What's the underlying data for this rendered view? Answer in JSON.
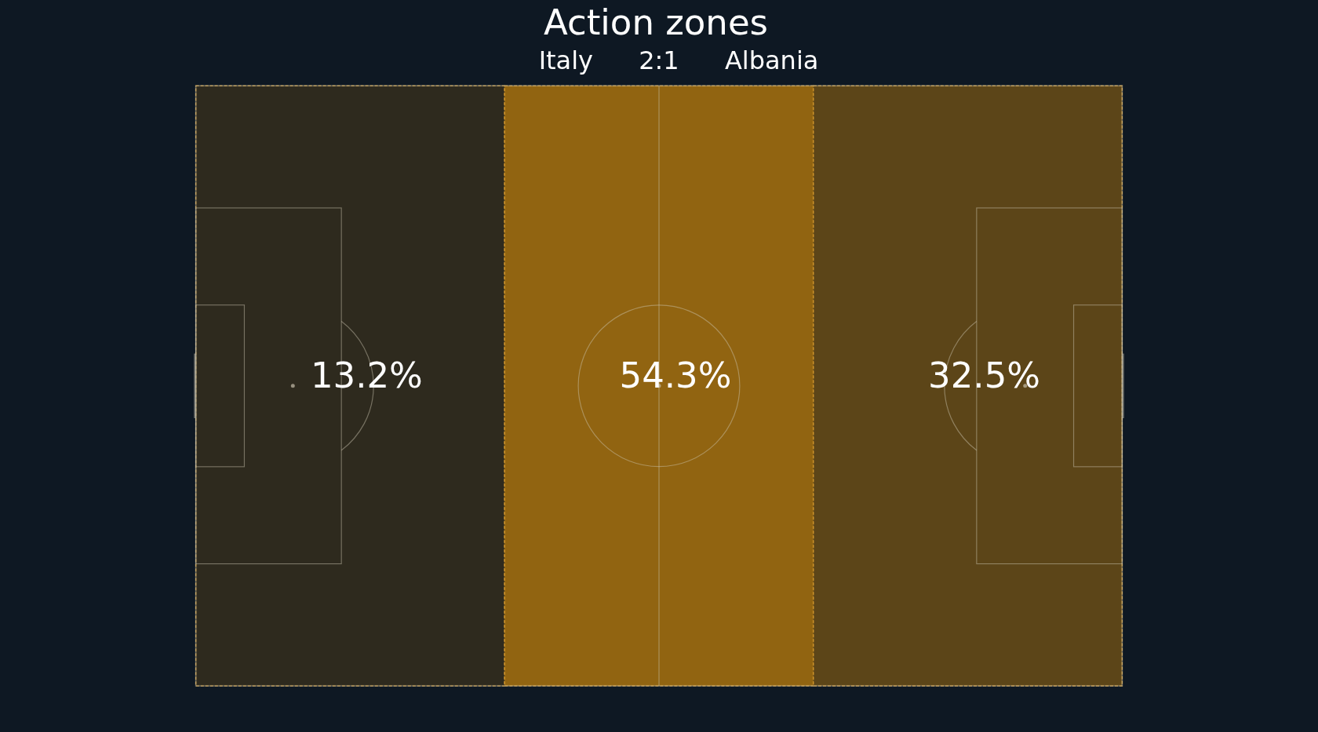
{
  "chart_data": {
    "type": "other",
    "title": "Action zones",
    "subtitle": "Italy 2:1 Albania",
    "categories": [
      null,
      null,
      null
    ],
    "values": [
      13.2,
      54.3,
      32.5
    ],
    "value_labels": [
      "13.2%",
      "54.3%",
      "32.5%"
    ]
  }
}
